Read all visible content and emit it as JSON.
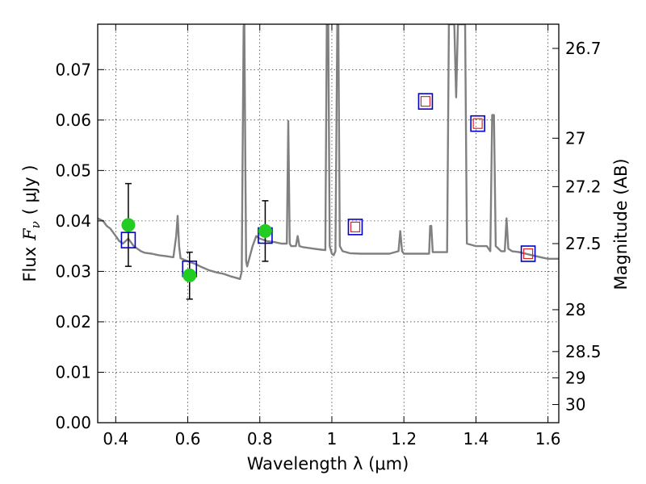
{
  "chart_data": {
    "type": "line",
    "xlabel": "Wavelength  λ (μm)",
    "ylabel": "Flux  F_ν  ( μJy )",
    "ylabel_parts": {
      "prefix": "Flux",
      "symbol": "F",
      "subscript": "ν",
      "unit": "( μJy )"
    },
    "y2label": "Magnitude (AB)",
    "xlim": [
      0.35,
      1.63
    ],
    "ylim": [
      0.0,
      0.079
    ],
    "grid": true,
    "x_ticks": [
      0.4,
      0.6,
      0.8,
      1.0,
      1.2,
      1.4,
      1.6
    ],
    "x_tick_labels": [
      "0.4",
      "0.6",
      "0.8",
      "1",
      "1.2",
      "1.4",
      "1.6"
    ],
    "y_ticks": [
      0.0,
      0.01,
      0.02,
      0.03,
      0.04,
      0.05,
      0.06,
      0.07
    ],
    "y_tick_labels": [
      "0.00",
      "0.01",
      "0.02",
      "0.03",
      "0.04",
      "0.05",
      "0.06",
      "0.07"
    ],
    "mag_ticks": [
      {
        "label": "26.7",
        "flux": 0.0742
      },
      {
        "label": "27",
        "flux": 0.0564
      },
      {
        "label": "27.2",
        "flux": 0.0468
      },
      {
        "label": "27.5",
        "flux": 0.0355
      },
      {
        "label": "28",
        "flux": 0.0224
      },
      {
        "label": "28.5",
        "flux": 0.0141
      },
      {
        "label": "29",
        "flux": 0.0089
      },
      {
        "label": "30",
        "flux": 0.0036
      }
    ],
    "series": [
      {
        "name": "model-spectrum",
        "color": "#808080",
        "x": [
          0.35,
          0.365,
          0.375,
          0.385,
          0.4,
          0.41,
          0.42,
          0.435,
          0.45,
          0.46,
          0.47,
          0.48,
          0.5,
          0.52,
          0.54,
          0.56,
          0.568,
          0.572,
          0.576,
          0.58,
          0.6,
          0.62,
          0.64,
          0.66,
          0.68,
          0.7,
          0.72,
          0.745,
          0.75,
          0.752,
          0.755,
          0.757,
          0.76,
          0.762,
          0.765,
          0.78,
          0.79,
          0.8,
          0.82,
          0.84,
          0.86,
          0.875,
          0.879,
          0.883,
          0.887,
          0.9,
          0.905,
          0.91,
          0.92,
          0.95,
          0.97,
          0.982,
          0.986,
          0.99,
          0.994,
          1.0,
          1.005,
          1.01,
          1.015,
          1.018,
          1.022,
          1.03,
          1.05,
          1.08,
          1.12,
          1.16,
          1.185,
          1.19,
          1.195,
          1.2,
          1.24,
          1.27,
          1.273,
          1.276,
          1.28,
          1.3,
          1.32,
          1.325,
          1.33,
          1.34,
          1.345,
          1.35,
          1.36,
          1.365,
          1.37,
          1.375,
          1.4,
          1.43,
          1.44,
          1.445,
          1.45,
          1.455,
          1.47,
          1.48,
          1.485,
          1.49,
          1.5,
          1.52,
          1.55,
          1.58,
          1.6,
          1.63
        ],
        "y": [
          0.0405,
          0.04,
          0.039,
          0.0385,
          0.037,
          0.036,
          0.0355,
          0.0365,
          0.035,
          0.0345,
          0.034,
          0.0337,
          0.0335,
          0.0332,
          0.033,
          0.0328,
          0.037,
          0.041,
          0.035,
          0.0326,
          0.032,
          0.0315,
          0.0308,
          0.0302,
          0.0298,
          0.0295,
          0.029,
          0.0285,
          0.03,
          0.05,
          0.0785,
          0.079,
          0.05,
          0.032,
          0.031,
          0.035,
          0.037,
          0.0365,
          0.036,
          0.0358,
          0.0355,
          0.0355,
          0.0598,
          0.0355,
          0.035,
          0.035,
          0.037,
          0.035,
          0.0348,
          0.0345,
          0.0343,
          0.0342,
          0.079,
          0.079,
          0.035,
          0.0335,
          0.0332,
          0.034,
          0.079,
          0.079,
          0.035,
          0.034,
          0.0336,
          0.0335,
          0.0335,
          0.0335,
          0.034,
          0.038,
          0.034,
          0.0335,
          0.0335,
          0.0335,
          0.039,
          0.039,
          0.0338,
          0.0338,
          0.0338,
          0.079,
          0.079,
          0.079,
          0.0645,
          0.079,
          0.079,
          0.079,
          0.079,
          0.0355,
          0.035,
          0.035,
          0.034,
          0.061,
          0.061,
          0.035,
          0.034,
          0.034,
          0.0405,
          0.0345,
          0.034,
          0.0338,
          0.0333,
          0.0328,
          0.0325,
          0.0325
        ]
      },
      {
        "name": "model-band-flux",
        "marker": "open-square",
        "color": "#0000cc",
        "x": [
          0.435,
          0.605,
          0.815,
          1.065,
          1.26,
          1.405,
          1.545
        ],
        "y": [
          0.0362,
          0.0305,
          0.0371,
          0.0388,
          0.0637,
          0.0593,
          0.0335
        ]
      },
      {
        "name": "model-band-flux-nir",
        "marker": "small-open-square",
        "color": "#dd2222",
        "x": [
          1.065,
          1.26,
          1.405,
          1.545
        ],
        "y": [
          0.0388,
          0.0637,
          0.0593,
          0.0335
        ]
      },
      {
        "name": "observed-photometry",
        "marker": "filled-circle",
        "color": "#22cc22",
        "x": [
          0.435,
          0.605,
          0.815
        ],
        "y": [
          0.0392,
          0.0292,
          0.038
        ],
        "yerr_low": [
          0.031,
          0.0245,
          0.032
        ],
        "yerr_high": [
          0.0474,
          0.0338,
          0.044
        ]
      }
    ]
  }
}
